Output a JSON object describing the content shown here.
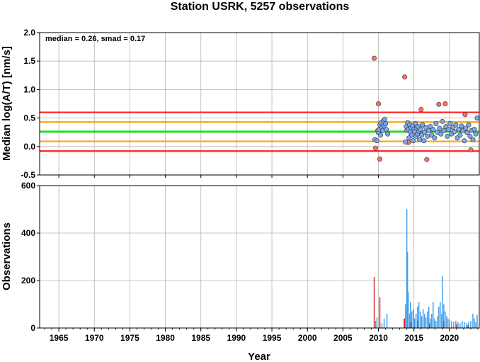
{
  "colors": {
    "red_line": "#ff2020",
    "orange_line": "#ffa500",
    "green_line": "#22dd22",
    "blue_marker": "#7aa7f0",
    "red_marker": "#ff7060",
    "blue_bar": "#3b9bef",
    "red_bar": "#e02020",
    "grid": "#b4b4b4"
  },
  "chart_data": [
    {
      "type": "scatter",
      "title": "Station USRK, 5257 observations",
      "ylabel": "Median log(A/T) [nm/s]",
      "xlabel": "",
      "annotation": "median = 0.26, smad = 0.17",
      "xlim": [
        1962.3,
        2024.2
      ],
      "ylim": [
        -0.5,
        2.0
      ],
      "grid": true,
      "x_ticks": [
        "1965",
        "1970",
        "1975",
        "1980",
        "1985",
        "1990",
        "1995",
        "2000",
        "2005",
        "2010",
        "2015",
        "2020"
      ],
      "y_ticks": [
        "-0.5",
        "0.0",
        "0.5",
        "1.0",
        "1.5",
        "2.0"
      ],
      "reference_lines": [
        {
          "y": 0.6,
          "color": "red"
        },
        {
          "y": 0.43,
          "color": "orange"
        },
        {
          "y": 0.26,
          "color": "green"
        },
        {
          "y": 0.09,
          "color": "orange"
        },
        {
          "y": -0.08,
          "color": "red"
        }
      ],
      "series": [
        {
          "color": "red",
          "x": [
            2009.4,
            2009.6,
            2010.0,
            2010.2,
            2014.2,
            2013.7,
            2016.0,
            2016.8,
            2018.5,
            2019.4,
            2023.0,
            2022.2,
            2014.7,
            2009.9
          ],
          "y": [
            1.55,
            -0.03,
            0.75,
            -0.22,
            0.07,
            1.22,
            0.65,
            -0.23,
            0.74,
            0.75,
            -0.06,
            0.56,
            0.2,
            0.28
          ]
        },
        {
          "color": "blue",
          "x": [
            2009.5,
            2009.8,
            2010.0,
            2010.1,
            2010.2,
            2010.3,
            2010.4,
            2010.5,
            2010.6,
            2010.7,
            2010.8,
            2010.9,
            2011.0,
            2011.1,
            2011.3,
            2013.8,
            2013.9,
            2014.0,
            2014.1,
            2014.2,
            2014.3,
            2014.4,
            2014.5,
            2014.6,
            2014.7,
            2014.8,
            2014.9,
            2015.0,
            2015.1,
            2015.2,
            2015.3,
            2015.4,
            2015.5,
            2015.6,
            2015.7,
            2015.8,
            2015.9,
            2016.1,
            2016.2,
            2016.4,
            2016.5,
            2016.7,
            2016.9,
            2017.1,
            2017.3,
            2017.5,
            2017.7,
            2017.9,
            2018.1,
            2018.3,
            2018.6,
            2018.8,
            2019.0,
            2019.2,
            2019.5,
            2019.7,
            2019.9,
            2020.1,
            2020.3,
            2020.5,
            2020.7,
            2020.9,
            2021.1,
            2021.3,
            2021.5,
            2021.7,
            2021.9,
            2022.1,
            2022.3,
            2022.5,
            2022.7,
            2022.9,
            2023.1,
            2023.3,
            2023.5,
            2023.7,
            2023.9
          ],
          "y": [
            0.12,
            0.1,
            0.24,
            0.3,
            0.38,
            0.2,
            0.42,
            0.33,
            0.28,
            0.45,
            0.36,
            0.48,
            0.4,
            0.3,
            0.22,
            0.08,
            0.35,
            0.28,
            0.42,
            0.3,
            0.15,
            0.38,
            0.25,
            0.33,
            0.2,
            0.36,
            0.1,
            0.3,
            0.26,
            0.4,
            0.18,
            0.32,
            0.22,
            0.35,
            0.27,
            0.12,
            0.3,
            0.2,
            0.38,
            0.1,
            0.25,
            0.33,
            0.18,
            0.28,
            0.35,
            0.2,
            0.3,
            0.15,
            0.4,
            0.25,
            0.32,
            0.22,
            0.44,
            0.28,
            0.35,
            0.18,
            0.3,
            0.4,
            0.22,
            0.34,
            0.26,
            0.38,
            0.15,
            0.3,
            0.2,
            0.36,
            0.28,
            0.1,
            0.32,
            0.24,
            0.38,
            0.18,
            0.28,
            0.12,
            0.3,
            0.22,
            0.5
          ]
        }
      ]
    },
    {
      "type": "bar",
      "title": "",
      "ylabel": "Observations",
      "xlabel": "Year",
      "xlim": [
        1962.3,
        2024.2
      ],
      "ylim": [
        0,
        600
      ],
      "grid": true,
      "x_ticks": [
        "1965",
        "1970",
        "1975",
        "1980",
        "1985",
        "1990",
        "1995",
        "2000",
        "2005",
        "2010",
        "2015",
        "2020"
      ],
      "y_ticks": [
        "0",
        "200",
        "400",
        "600"
      ],
      "series": [
        {
          "color": "blue",
          "x": [
            2009.6,
            2009.8,
            2010.2,
            2010.5,
            2010.8,
            2011.2,
            2013.6,
            2013.8,
            2014.0,
            2014.1,
            2014.2,
            2014.4,
            2014.5,
            2014.7,
            2014.9,
            2015.1,
            2015.3,
            2015.5,
            2015.7,
            2015.9,
            2016.1,
            2016.3,
            2016.5,
            2016.7,
            2016.9,
            2017.1,
            2017.3,
            2017.5,
            2017.7,
            2017.9,
            2018.1,
            2018.3,
            2018.5,
            2018.7,
            2018.9,
            2019.0,
            2019.2,
            2019.4,
            2019.6,
            2019.8,
            2020.0,
            2020.3,
            2020.6,
            2020.9,
            2021.2,
            2021.5,
            2021.8,
            2022.1,
            2022.4,
            2022.7,
            2023.0,
            2023.3,
            2023.5,
            2023.7,
            2023.9
          ],
          "y": [
            30,
            45,
            25,
            20,
            40,
            60,
            40,
            100,
            500,
            320,
            150,
            60,
            110,
            70,
            80,
            40,
            60,
            90,
            110,
            70,
            50,
            80,
            60,
            45,
            70,
            90,
            40,
            60,
            110,
            40,
            30,
            50,
            90,
            110,
            60,
            220,
            100,
            70,
            50,
            40,
            35,
            30,
            25,
            30,
            25,
            20,
            30,
            25,
            20,
            25,
            30,
            60,
            40,
            25,
            55
          ]
        },
        {
          "color": "red",
          "x": [
            2009.4,
            2010.2,
            2013.7,
            2014.6,
            2015.5,
            2017.2,
            2019.2,
            2021.0,
            2022.6
          ],
          "y": [
            215,
            130,
            40,
            25,
            30,
            20,
            30,
            15,
            12
          ]
        }
      ]
    }
  ]
}
